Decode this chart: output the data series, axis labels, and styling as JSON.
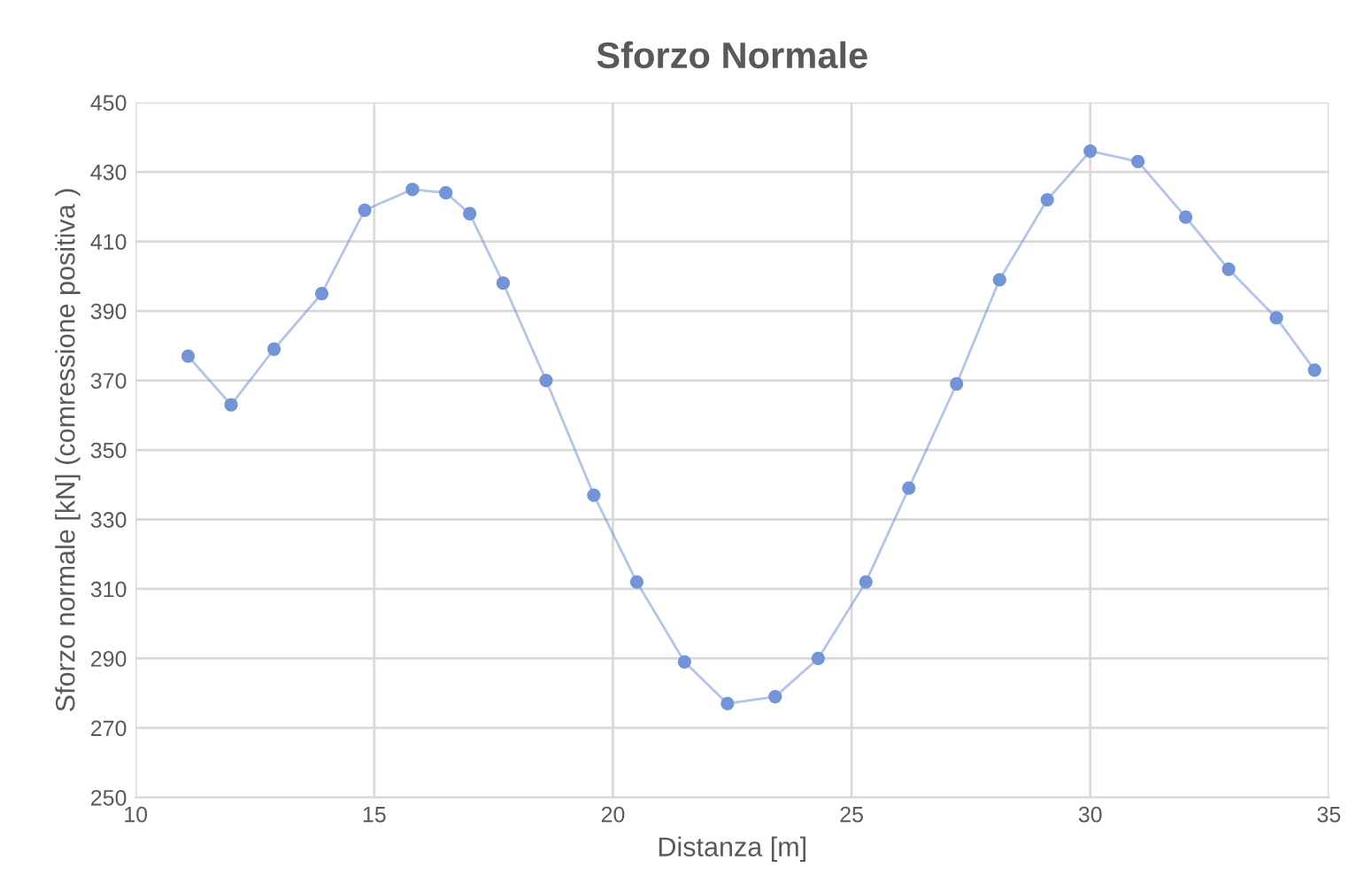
{
  "chart_data": {
    "type": "line",
    "title": "Sforzo Normale",
    "xlabel": "Distanza [m]",
    "ylabel": "Sforzo normale [kN] (comressione positiva )",
    "series": [
      {
        "color": "#7394d6",
        "x": [
          11.1,
          12.0,
          12.9,
          13.9,
          14.8,
          15.8,
          16.5,
          17.0,
          17.7,
          18.6,
          19.6,
          20.5,
          21.5,
          22.4,
          23.4,
          24.3,
          25.3,
          26.2,
          27.2,
          28.1,
          29.1,
          30.0,
          31.0,
          32.0,
          32.9,
          33.9,
          34.7
        ],
        "values": [
          377,
          363,
          379,
          395,
          419,
          425,
          424,
          418,
          398,
          370,
          337,
          312,
          289,
          277,
          279,
          290,
          312,
          339,
          369,
          399,
          422,
          436,
          433,
          417,
          402,
          388,
          373
        ]
      }
    ],
    "xlim": [
      10,
      35
    ],
    "xticks": [
      10,
      15,
      20,
      25,
      30,
      35
    ],
    "ylim": [
      250,
      450
    ],
    "yticks": [
      250,
      270,
      290,
      310,
      330,
      350,
      370,
      390,
      410,
      430,
      450
    ],
    "grid": true,
    "marker": "circle",
    "line_style": "solid"
  }
}
